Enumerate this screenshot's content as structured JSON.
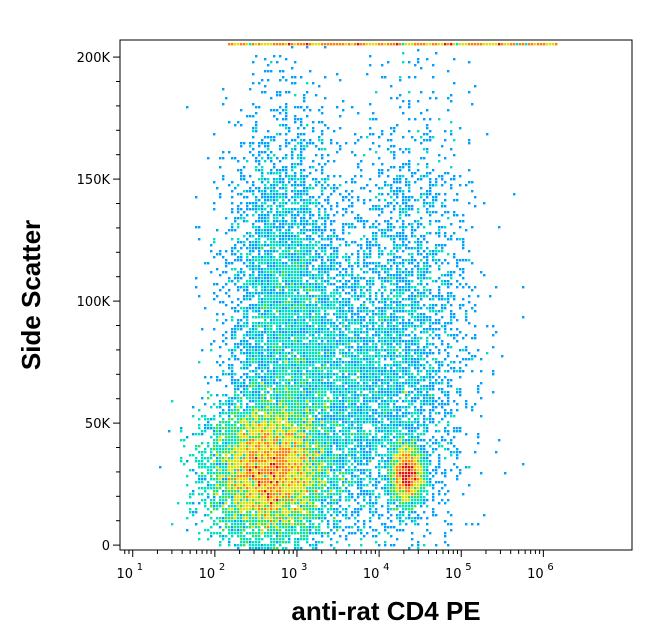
{
  "chart_data": {
    "type": "scatter",
    "subtype": "flow-cytometry-density-dot-plot",
    "title": "",
    "xlabel": "anti-rat CD4 PE",
    "ylabel": "Side Scatter",
    "x_scale": "log",
    "xlim": [
      7,
      12000000
    ],
    "ylim": [
      -2000,
      207000
    ],
    "x_ticks": [
      {
        "value": 10,
        "base": "10",
        "exp": "1"
      },
      {
        "value": 100,
        "base": "10",
        "exp": "2"
      },
      {
        "value": 1000,
        "base": "10",
        "exp": "3"
      },
      {
        "value": 10000,
        "base": "10",
        "exp": "4"
      },
      {
        "value": 100000,
        "base": "10",
        "exp": "5"
      },
      {
        "value": 1000000,
        "base": "10",
        "exp": "6"
      }
    ],
    "y_ticks": [
      {
        "value": 0,
        "label": "0"
      },
      {
        "value": 50000,
        "label": "50K"
      },
      {
        "value": 100000,
        "label": "100K"
      },
      {
        "value": 150000,
        "label": "150K"
      },
      {
        "value": 200000,
        "label": "200K"
      }
    ],
    "density_colormap": [
      "#0000ff",
      "#00a0ff",
      "#00e0c0",
      "#40e040",
      "#e0e000",
      "#ff8000",
      "#e01010"
    ],
    "populations": [
      {
        "x_center": 450,
        "y_center": 30000,
        "x_spread_decades": 0.35,
        "y_spread": 14000,
        "relative_size": 1.0
      },
      {
        "x_center": 700,
        "y_center": 95000,
        "x_spread_decades": 0.35,
        "y_spread": 40000,
        "relative_size": 0.35
      },
      {
        "x_center": 22000,
        "y_center": 29000,
        "x_spread_decades": 0.1,
        "y_spread": 6000,
        "relative_size": 0.2
      },
      {
        "x_center": 22000,
        "y_center": 90000,
        "x_spread_decades": 0.4,
        "y_spread": 45000,
        "relative_size": 0.2
      },
      {
        "x_center": 4000,
        "y_center": 60000,
        "x_spread_decades": 0.5,
        "y_spread": 30000,
        "relative_size": 0.25
      }
    ],
    "saturation_ceiling_y": 205000
  }
}
